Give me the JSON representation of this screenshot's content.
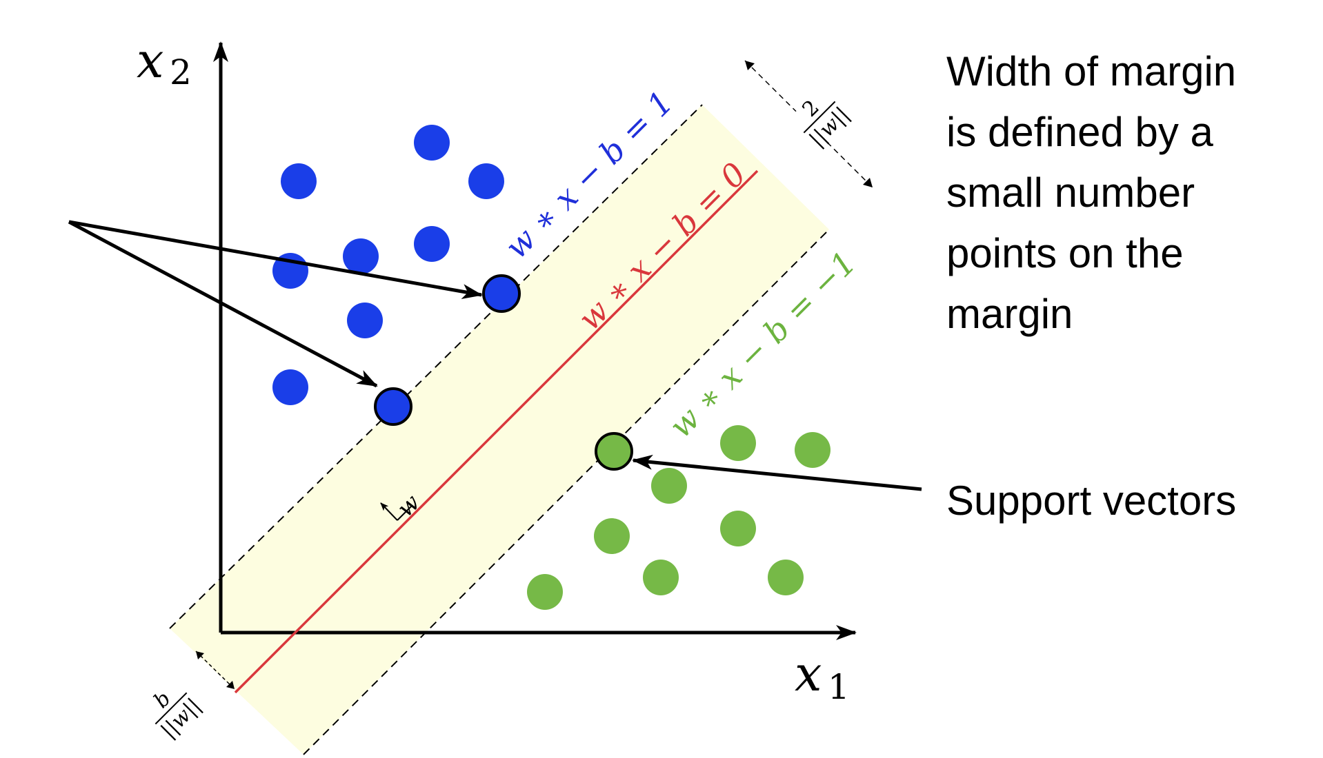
{
  "axes": {
    "x_label": "x",
    "x_sub": "1",
    "y_label": "x",
    "y_sub": "2"
  },
  "lines": {
    "upper_label": "w ∗ x − b = 1",
    "middle_label": "w ∗ x − b = 0",
    "lower_label": "w ∗ x − b = −1"
  },
  "vector_label": "w",
  "margin_annotation": {
    "numerator": "2",
    "denominator": "||w||"
  },
  "offset_annotation": {
    "numerator": "b",
    "denominator": "||w||"
  },
  "captions": {
    "margin_lines": [
      "Width of margin",
      "is defined by a",
      "small number",
      "points on the",
      "margin"
    ],
    "support_vectors": "Support vectors"
  },
  "colors": {
    "class_positive": "#1a3ee8",
    "class_negative": "#76b947",
    "decision_boundary": "#d9373c",
    "margin_fill": "#fdfde0",
    "upper_label": "#1f2fd9",
    "lower_label": "#6cb33f"
  }
}
